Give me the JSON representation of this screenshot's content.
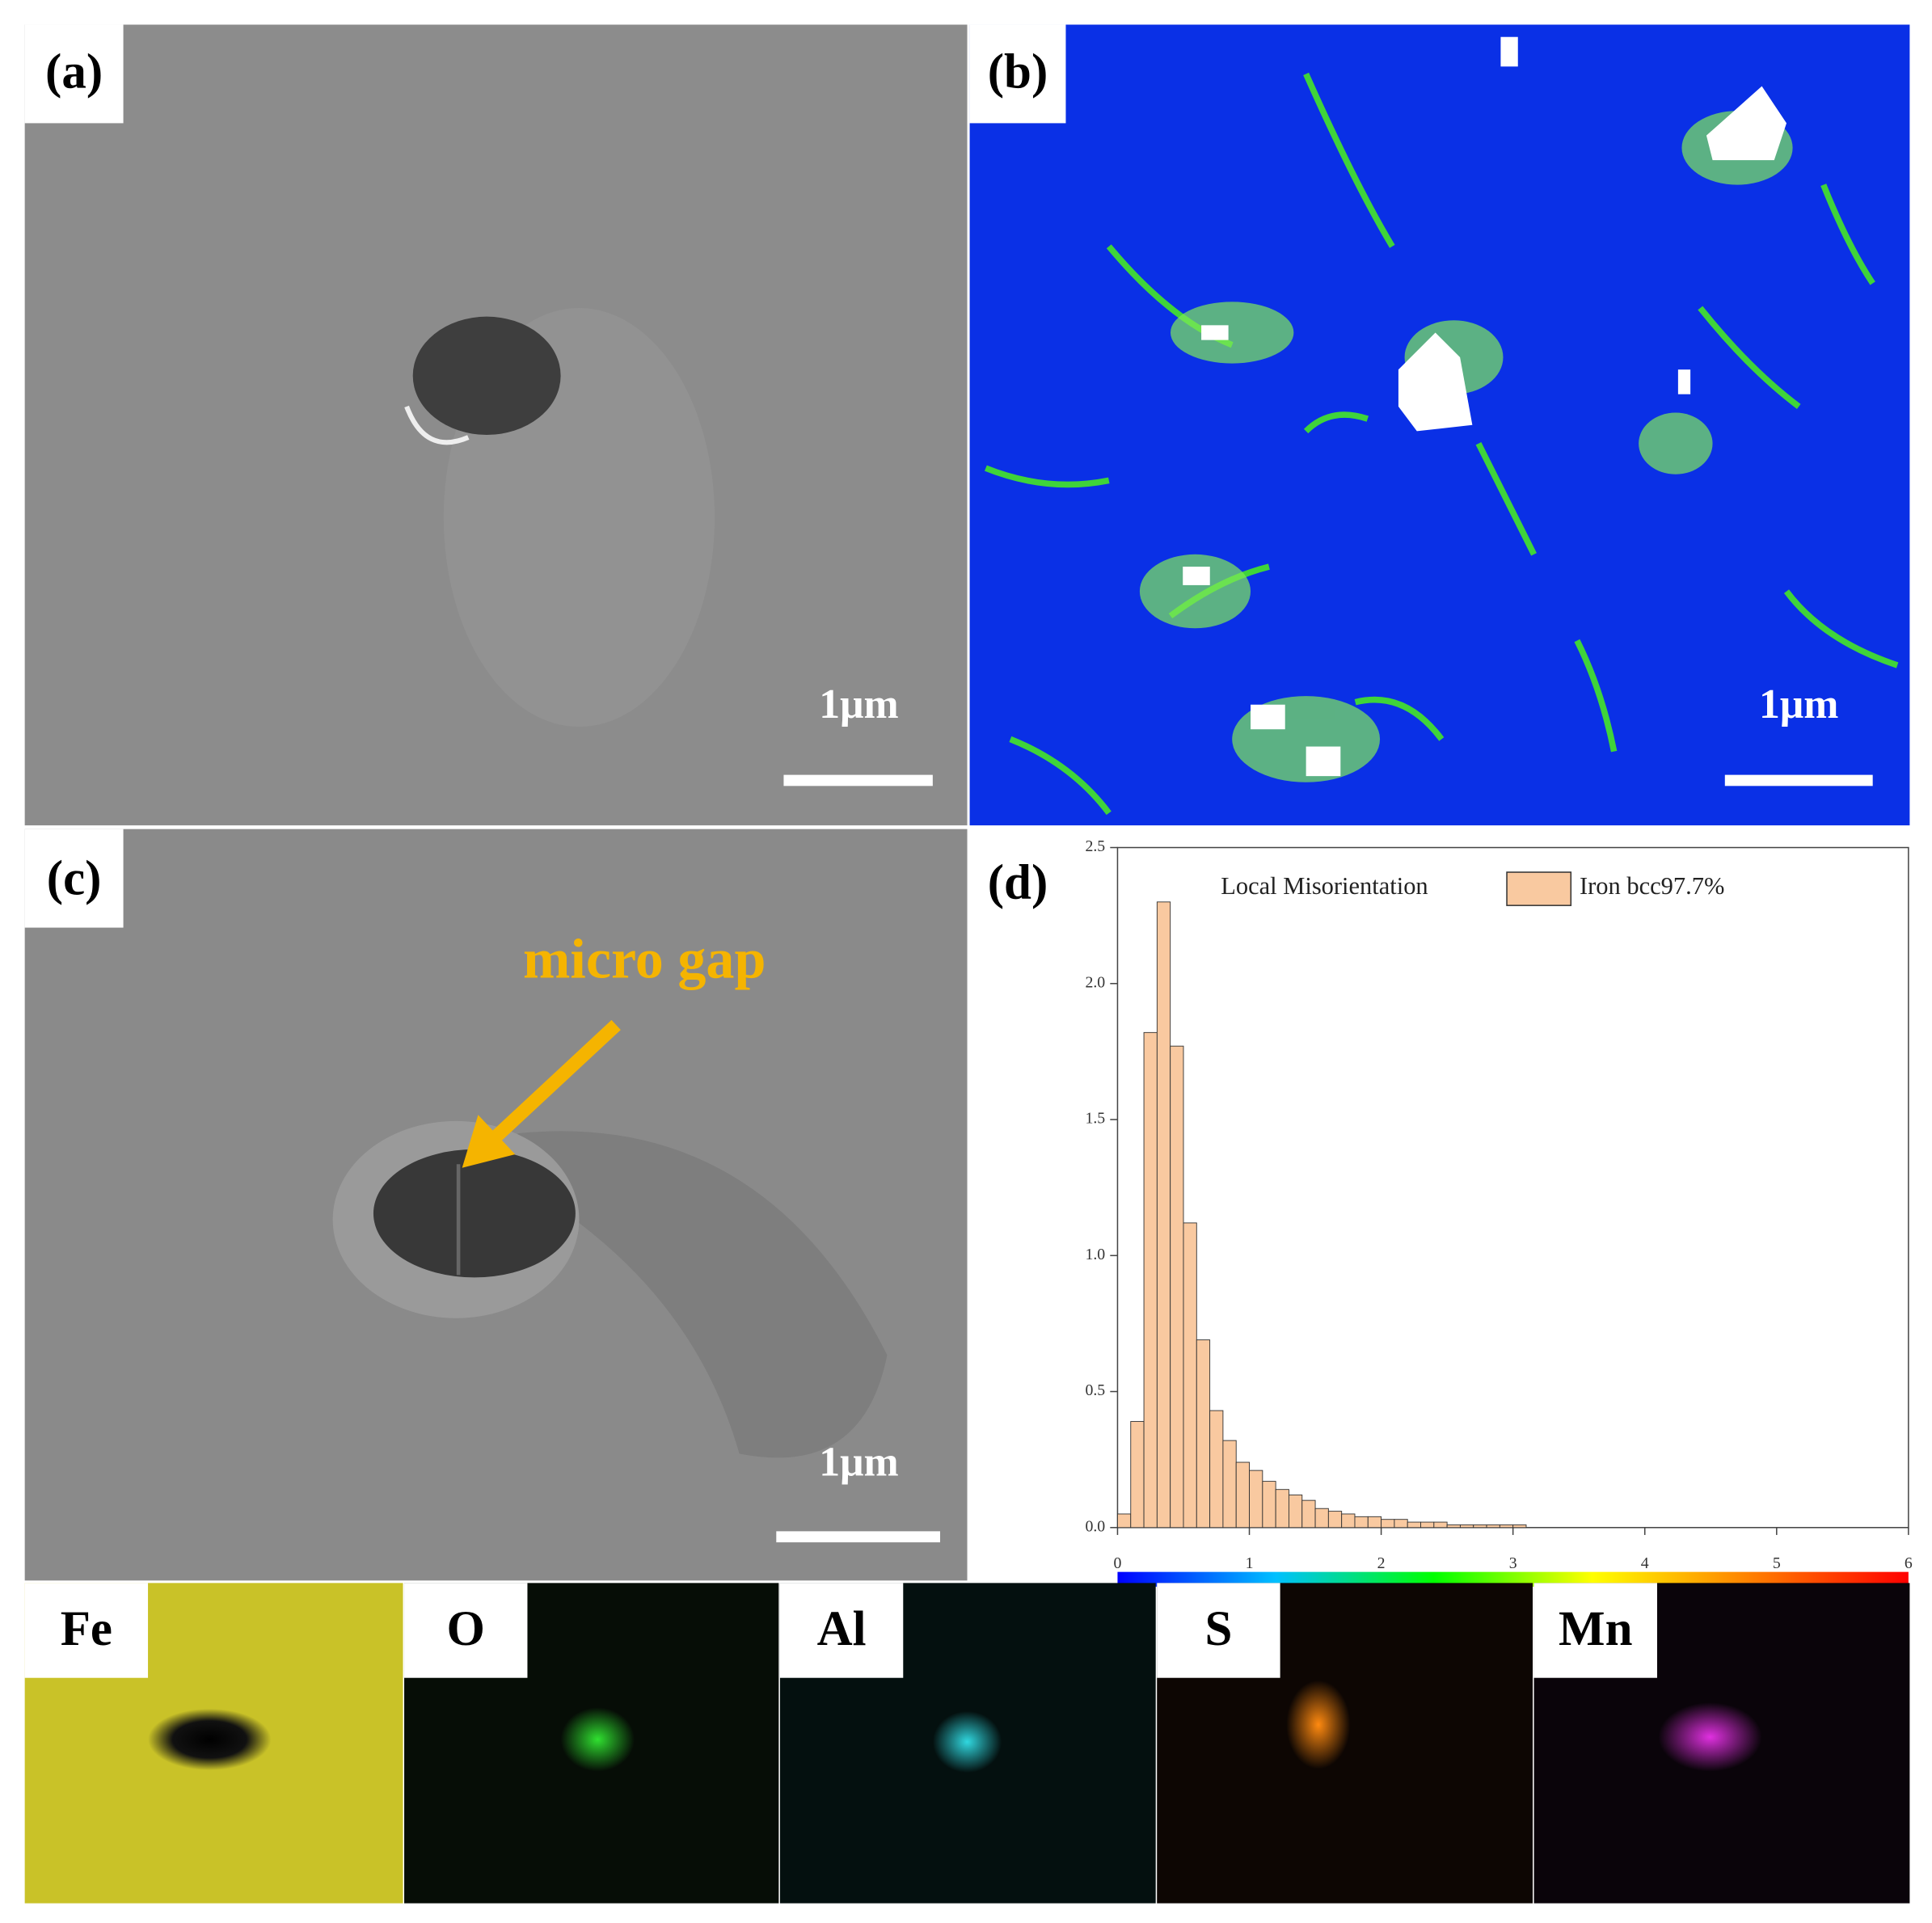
{
  "panels": {
    "a": {
      "label": "(a)",
      "scale_bar": "1μm"
    },
    "b": {
      "label": "(b)",
      "scale_bar": "1μm"
    },
    "c": {
      "label": "(c)",
      "scale_bar": "1μm",
      "annotation": "micro gap"
    }
  },
  "chart_data": {
    "type": "histogram",
    "panel_label": "(d)",
    "legend_title": "Local Misorientation",
    "bins": [
      0,
      0.1,
      0.2,
      0.3,
      0.4,
      0.5,
      0.6,
      0.7,
      0.8,
      0.9,
      1.0,
      1.1,
      1.2,
      1.3,
      1.4,
      1.5,
      1.6,
      1.7,
      1.8,
      1.9,
      2.0,
      2.1,
      2.2,
      2.3,
      2.4,
      2.5,
      2.6,
      2.7,
      2.8,
      2.9,
      3.0,
      3.1
    ],
    "series": [
      {
        "name": "Iron bcc97.7%",
        "color": "#f9c9a0",
        "values": [
          0.05,
          0.39,
          1.82,
          2.3,
          1.77,
          1.12,
          0.69,
          0.43,
          0.32,
          0.24,
          0.21,
          0.17,
          0.14,
          0.12,
          0.1,
          0.07,
          0.06,
          0.05,
          0.04,
          0.04,
          0.03,
          0.03,
          0.02,
          0.02,
          0.02,
          0.01,
          0.01,
          0.01,
          0.01,
          0.01,
          0.01
        ]
      }
    ],
    "edgecolor": "#333333",
    "xlim": [
      0,
      6
    ],
    "xticks": [
      0,
      1,
      2,
      3,
      4,
      5,
      6
    ],
    "ylim": [
      0,
      2.5
    ],
    "yticks": [
      {
        "value": 0,
        "label": "0.0"
      },
      {
        "value": 0.5,
        "label": "0.5"
      },
      {
        "value": 1,
        "label": "1.0"
      },
      {
        "value": 1.5,
        "label": "1.5"
      },
      {
        "value": 2,
        "label": "2.0"
      },
      {
        "value": 2.5,
        "label": "2.5"
      }
    ],
    "colorbar": [
      "#0000ff",
      "#00c0ff",
      "#00ff00",
      "#ffff00",
      "#ff8000",
      "#ff0000"
    ]
  },
  "eds": {
    "elements": [
      "Fe",
      "O",
      "Al",
      "S",
      "Mn"
    ]
  }
}
